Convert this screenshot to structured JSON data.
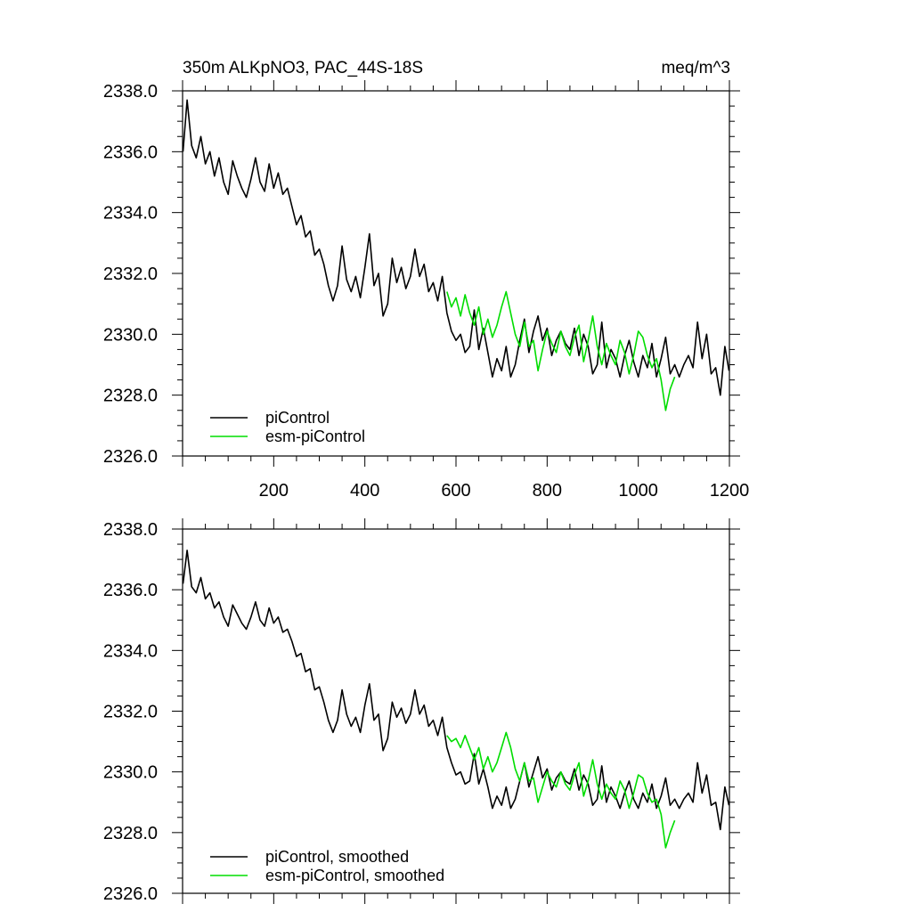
{
  "chart_data": [
    {
      "type": "line",
      "panel": "top",
      "title": "350m ALKpNO3, PAC_44S-18S",
      "units": "meq/m^3",
      "xlim": [
        0,
        1200
      ],
      "ylim": [
        2326.0,
        2338.0
      ],
      "x_ticks": [
        200,
        400,
        600,
        800,
        1000,
        1200
      ],
      "x_tick_labels": [
        "200",
        "400",
        "600",
        "800",
        "1000",
        "1200"
      ],
      "y_ticks": [
        2326.0,
        2328.0,
        2330.0,
        2332.0,
        2334.0,
        2336.0,
        2338.0
      ],
      "y_tick_labels": [
        "2326.0",
        "2328.0",
        "2330.0",
        "2332.0",
        "2334.0",
        "2336.0",
        "2338.0"
      ],
      "grid": false,
      "legend_position": "bottom-left",
      "series": [
        {
          "name": "piControl",
          "color": "#000000",
          "x": [
            1,
            10,
            20,
            30,
            40,
            50,
            60,
            70,
            80,
            90,
            100,
            110,
            120,
            130,
            140,
            150,
            160,
            170,
            180,
            190,
            200,
            210,
            220,
            230,
            240,
            250,
            260,
            270,
            280,
            290,
            300,
            310,
            320,
            330,
            340,
            350,
            360,
            370,
            380,
            390,
            400,
            410,
            420,
            430,
            440,
            450,
            460,
            470,
            480,
            490,
            500,
            510,
            520,
            530,
            540,
            550,
            560,
            570,
            580,
            590,
            600,
            610,
            620,
            630,
            640,
            650,
            660,
            670,
            680,
            690,
            700,
            710,
            720,
            730,
            740,
            750,
            760,
            770,
            780,
            790,
            800,
            810,
            820,
            830,
            840,
            850,
            860,
            870,
            880,
            890,
            900,
            910,
            920,
            930,
            940,
            950,
            960,
            970,
            980,
            990,
            1000,
            1010,
            1020,
            1030,
            1040,
            1050,
            1060,
            1070,
            1080,
            1090,
            1100,
            1110,
            1120,
            1130,
            1140,
            1150,
            1160,
            1170,
            1180,
            1190,
            1199
          ],
          "y": [
            2336.0,
            2337.7,
            2336.2,
            2335.8,
            2336.5,
            2335.6,
            2336.0,
            2335.2,
            2335.8,
            2335.0,
            2334.6,
            2335.7,
            2335.2,
            2334.8,
            2334.5,
            2335.1,
            2335.8,
            2335.0,
            2334.7,
            2335.6,
            2334.8,
            2335.3,
            2334.6,
            2334.8,
            2334.2,
            2333.6,
            2333.9,
            2333.2,
            2333.4,
            2332.6,
            2332.8,
            2332.3,
            2331.6,
            2331.1,
            2331.6,
            2332.9,
            2331.8,
            2331.4,
            2331.9,
            2331.2,
            2332.2,
            2333.3,
            2331.6,
            2332.0,
            2330.6,
            2331.0,
            2332.5,
            2331.7,
            2332.2,
            2331.5,
            2331.9,
            2332.8,
            2331.9,
            2332.3,
            2331.4,
            2331.7,
            2331.1,
            2331.9,
            2330.7,
            2330.1,
            2329.8,
            2330.0,
            2329.4,
            2329.6,
            2330.8,
            2329.5,
            2330.2,
            2329.4,
            2328.6,
            2329.2,
            2328.8,
            2329.6,
            2328.6,
            2329.0,
            2329.8,
            2330.5,
            2329.4,
            2330.1,
            2330.6,
            2329.8,
            2330.2,
            2329.3,
            2329.8,
            2330.1,
            2329.7,
            2329.5,
            2330.2,
            2329.3,
            2330.0,
            2329.6,
            2328.7,
            2329.0,
            2330.4,
            2328.9,
            2329.5,
            2329.2,
            2328.6,
            2329.3,
            2329.8,
            2329.1,
            2328.6,
            2329.3,
            2328.9,
            2329.7,
            2328.6,
            2329.2,
            2329.9,
            2328.7,
            2329.0,
            2328.6,
            2329.0,
            2329.3,
            2328.9,
            2330.4,
            2329.2,
            2330.0,
            2328.7,
            2328.9,
            2328.0,
            2329.6,
            2328.8
          ]
        },
        {
          "name": "esm-piControl",
          "color": "#00dd00",
          "x": [
            580,
            590,
            600,
            610,
            620,
            630,
            640,
            650,
            660,
            670,
            680,
            690,
            700,
            710,
            720,
            730,
            740,
            750,
            760,
            770,
            780,
            790,
            800,
            810,
            820,
            830,
            840,
            850,
            860,
            870,
            880,
            890,
            900,
            910,
            920,
            930,
            940,
            950,
            960,
            970,
            980,
            990,
            1000,
            1010,
            1020,
            1030,
            1040,
            1050,
            1060,
            1070,
            1080
          ],
          "y": [
            2331.4,
            2330.9,
            2331.2,
            2330.6,
            2331.3,
            2330.7,
            2330.3,
            2330.9,
            2330.0,
            2330.5,
            2329.9,
            2330.3,
            2330.9,
            2331.4,
            2330.7,
            2330.0,
            2329.6,
            2330.4,
            2329.6,
            2329.8,
            2328.8,
            2329.5,
            2330.1,
            2329.7,
            2329.4,
            2330.1,
            2329.6,
            2329.3,
            2329.9,
            2330.3,
            2329.1,
            2329.8,
            2330.6,
            2329.6,
            2329.0,
            2329.7,
            2329.3,
            2329.0,
            2329.8,
            2329.4,
            2328.7,
            2329.3,
            2330.1,
            2329.9,
            2329.3,
            2328.9,
            2329.2,
            2328.5,
            2327.5,
            2328.2,
            2328.6
          ]
        }
      ]
    },
    {
      "type": "line",
      "panel": "bottom",
      "xlim": [
        0,
        1200
      ],
      "ylim": [
        2326.0,
        2338.0
      ],
      "y_ticks": [
        2326.0,
        2328.0,
        2330.0,
        2332.0,
        2334.0,
        2336.0,
        2338.0
      ],
      "y_tick_labels": [
        "2326.0",
        "2328.0",
        "2330.0",
        "2332.0",
        "2334.0",
        "2336.0",
        "2338.0"
      ],
      "grid": false,
      "legend_position": "bottom-left",
      "series": [
        {
          "name": "piControl, smoothed",
          "color": "#000000",
          "x": [
            1,
            10,
            20,
            30,
            40,
            50,
            60,
            70,
            80,
            90,
            100,
            110,
            120,
            130,
            140,
            150,
            160,
            170,
            180,
            190,
            200,
            210,
            220,
            230,
            240,
            250,
            260,
            270,
            280,
            290,
            300,
            310,
            320,
            330,
            340,
            350,
            360,
            370,
            380,
            390,
            400,
            410,
            420,
            430,
            440,
            450,
            460,
            470,
            480,
            490,
            500,
            510,
            520,
            530,
            540,
            550,
            560,
            570,
            580,
            590,
            600,
            610,
            620,
            630,
            640,
            650,
            660,
            670,
            680,
            690,
            700,
            710,
            720,
            730,
            740,
            750,
            760,
            770,
            780,
            790,
            800,
            810,
            820,
            830,
            840,
            850,
            860,
            870,
            880,
            890,
            900,
            910,
            920,
            930,
            940,
            950,
            960,
            970,
            980,
            990,
            1000,
            1010,
            1020,
            1030,
            1040,
            1050,
            1060,
            1070,
            1080,
            1090,
            1100,
            1110,
            1120,
            1130,
            1140,
            1150,
            1160,
            1170,
            1180,
            1190,
            1199
          ],
          "y": [
            2336.2,
            2337.3,
            2336.1,
            2335.9,
            2336.4,
            2335.7,
            2335.9,
            2335.4,
            2335.6,
            2335.1,
            2334.8,
            2335.5,
            2335.2,
            2334.9,
            2334.7,
            2335.1,
            2335.6,
            2335.0,
            2334.8,
            2335.4,
            2334.9,
            2335.1,
            2334.6,
            2334.7,
            2334.3,
            2333.8,
            2333.9,
            2333.3,
            2333.4,
            2332.7,
            2332.8,
            2332.3,
            2331.7,
            2331.3,
            2331.7,
            2332.7,
            2331.9,
            2331.5,
            2331.8,
            2331.3,
            2332.2,
            2332.9,
            2331.7,
            2331.9,
            2330.7,
            2331.1,
            2332.3,
            2331.8,
            2332.1,
            2331.6,
            2331.9,
            2332.7,
            2331.9,
            2332.2,
            2331.5,
            2331.7,
            2331.2,
            2331.8,
            2330.8,
            2330.3,
            2329.9,
            2330.0,
            2329.6,
            2329.7,
            2330.6,
            2329.6,
            2330.1,
            2329.5,
            2328.8,
            2329.2,
            2328.9,
            2329.5,
            2328.8,
            2329.1,
            2329.7,
            2330.3,
            2329.5,
            2330.0,
            2330.5,
            2329.8,
            2330.1,
            2329.4,
            2329.8,
            2330.0,
            2329.7,
            2329.6,
            2330.1,
            2329.4,
            2329.9,
            2329.6,
            2328.9,
            2329.1,
            2330.2,
            2329.0,
            2329.5,
            2329.2,
            2328.8,
            2329.3,
            2329.7,
            2329.1,
            2328.8,
            2329.3,
            2329.0,
            2329.6,
            2328.8,
            2329.2,
            2329.8,
            2328.9,
            2329.1,
            2328.8,
            2329.1,
            2329.3,
            2329.0,
            2330.3,
            2329.3,
            2329.9,
            2328.9,
            2329.0,
            2328.1,
            2329.5,
            2328.9
          ]
        },
        {
          "name": "esm-piControl, smoothed",
          "color": "#00dd00",
          "x": [
            580,
            590,
            600,
            610,
            620,
            630,
            640,
            650,
            660,
            670,
            680,
            690,
            700,
            710,
            720,
            730,
            740,
            750,
            760,
            770,
            780,
            790,
            800,
            810,
            820,
            830,
            840,
            850,
            860,
            870,
            880,
            890,
            900,
            910,
            920,
            930,
            940,
            950,
            960,
            970,
            980,
            990,
            1000,
            1010,
            1020,
            1030,
            1040,
            1050,
            1060,
            1070,
            1080
          ],
          "y": [
            2331.2,
            2331.0,
            2331.1,
            2330.8,
            2331.2,
            2330.8,
            2330.4,
            2330.8,
            2330.1,
            2330.5,
            2330.0,
            2330.3,
            2330.8,
            2331.3,
            2330.8,
            2330.1,
            2329.7,
            2330.3,
            2329.7,
            2329.8,
            2329.0,
            2329.5,
            2330.0,
            2329.7,
            2329.5,
            2330.0,
            2329.6,
            2329.4,
            2329.9,
            2330.3,
            2329.2,
            2329.7,
            2330.4,
            2329.6,
            2329.1,
            2329.6,
            2329.3,
            2329.1,
            2329.7,
            2329.4,
            2328.8,
            2329.3,
            2329.9,
            2329.8,
            2329.3,
            2329.0,
            2329.1,
            2328.6,
            2327.5,
            2328.0,
            2328.4
          ]
        }
      ]
    }
  ]
}
